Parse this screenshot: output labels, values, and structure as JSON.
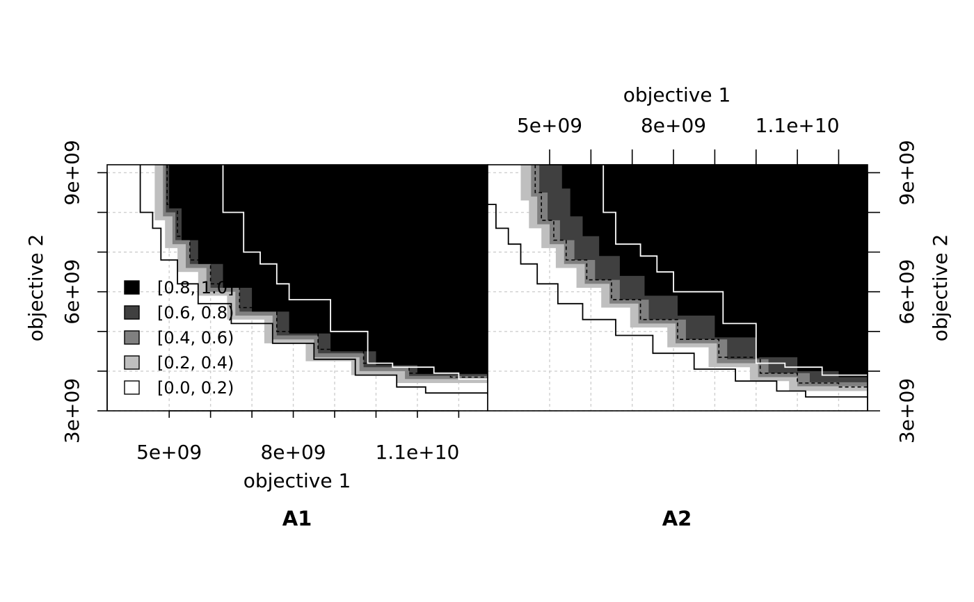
{
  "chart_data": {
    "type": "area",
    "figure": "empirical attainment function difference plot",
    "legend": {
      "placement": "bottom-left of A1 panel",
      "entries": [
        {
          "label": "[0.8, 1.0]",
          "color": "#000000"
        },
        {
          "label": "[0.6, 0.8)",
          "color": "#404040"
        },
        {
          "label": "[0.4, 0.6)",
          "color": "#808080"
        },
        {
          "label": "[0.2, 0.4)",
          "color": "#bfbfbf"
        },
        {
          "label": "[0.0, 0.2)",
          "color": "#ffffff"
        }
      ]
    },
    "axes": {
      "xlim": [
        3500000000,
        12700000000
      ],
      "ylim": [
        3000000000,
        9200000000
      ],
      "x_ticks": [
        5000000000,
        6000000000,
        7000000000,
        8000000000,
        9000000000,
        10000000000,
        11000000000,
        12000000000
      ],
      "y_ticks": [
        3000000000,
        4000000000,
        5000000000,
        6000000000,
        7000000000,
        8000000000,
        9000000000
      ],
      "x_tick_labels": [
        {
          "value": 5000000000,
          "label": "5e+09"
        },
        {
          "value": 8000000000,
          "label": "8e+09"
        },
        {
          "value": 11000000000,
          "label": "1.1e+10"
        }
      ],
      "y_tick_labels": [
        {
          "value": 3000000000,
          "label": "3e+09"
        },
        {
          "value": 6000000000,
          "label": "6e+09"
        },
        {
          "value": 9000000000,
          "label": "9e+09"
        }
      ],
      "xlabel": "objective 1",
      "ylabel": "objective 2",
      "grid": true
    },
    "panels": [
      {
        "title": "A1",
        "best_attainment": {
          "color": "#000000",
          "points": [
            [
              4300000000,
              9200000000
            ],
            [
              4300000000,
              8000000000
            ],
            [
              4600000000,
              7600000000
            ],
            [
              4800000000,
              6800000000
            ],
            [
              5200000000,
              6200000000
            ],
            [
              5700000000,
              5700000000
            ],
            [
              6500000000,
              5200000000
            ],
            [
              7500000000,
              4700000000
            ],
            [
              8500000000,
              4300000000
            ],
            [
              9500000000,
              3900000000
            ],
            [
              10500000000,
              3600000000
            ],
            [
              11200000000,
              3450000000
            ],
            [
              12700000000,
              3400000000
            ]
          ]
        },
        "worst_attainment": {
          "color": "#ffffff",
          "points": [
            [
              6300000000,
              9200000000
            ],
            [
              6300000000,
              8000000000
            ],
            [
              6800000000,
              7000000000
            ],
            [
              7200000000,
              6700000000
            ],
            [
              7600000000,
              6200000000
            ],
            [
              7900000000,
              5800000000
            ],
            [
              8900000000,
              5800000000
            ],
            [
              8900000000,
              5000000000
            ],
            [
              9800000000,
              5000000000
            ],
            [
              9800000000,
              4200000000
            ],
            [
              10400000000,
              4100000000
            ],
            [
              11400000000,
              3950000000
            ],
            [
              12000000000,
              3800000000
            ],
            [
              12700000000,
              3800000000
            ]
          ]
        },
        "median_attainment": {
          "style": "dashed",
          "points": [
            [
              4950000000,
              9200000000
            ],
            [
              4950000000,
              8200000000
            ],
            [
              5200000000,
              7400000000
            ],
            [
              5500000000,
              6800000000
            ],
            [
              6000000000,
              6200000000
            ],
            [
              6700000000,
              5600000000
            ],
            [
              7600000000,
              5000000000
            ],
            [
              8600000000,
              4550000000
            ],
            [
              9700000000,
              4200000000
            ],
            [
              10800000000,
              3950000000
            ],
            [
              11800000000,
              3850000000
            ],
            [
              12700000000,
              3800000000
            ]
          ]
        },
        "regions": [
          {
            "level": "[0.8, 1.0]",
            "color": "#000000",
            "outline": [
              [
                5000000000,
                9200000000
              ],
              [
                5000000000,
                8100000000
              ],
              [
                5300000000,
                7300000000
              ],
              [
                5700000000,
                6700000000
              ],
              [
                6300000000,
                6100000000
              ],
              [
                7000000000,
                5500000000
              ],
              [
                7900000000,
                4950000000
              ],
              [
                8900000000,
                4500000000
              ],
              [
                10000000000,
                4150000000
              ],
              [
                11000000000,
                3930000000
              ],
              [
                12700000000,
                3850000000
              ]
            ]
          },
          {
            "level": "[0.6, 0.8)",
            "color": "#404040",
            "outline": [
              [
                4920000000,
                9200000000
              ],
              [
                4920000000,
                8000000000
              ],
              [
                5150000000,
                7300000000
              ],
              [
                5500000000,
                6700000000
              ],
              [
                6000000000,
                6100000000
              ],
              [
                6700000000,
                5500000000
              ],
              [
                7600000000,
                4900000000
              ],
              [
                8600000000,
                4450000000
              ],
              [
                9700000000,
                4100000000
              ],
              [
                10800000000,
                3880000000
              ],
              [
                12700000000,
                3780000000
              ]
            ]
          },
          {
            "level": "[0.4, 0.6)",
            "color": "#808080",
            "outline": [
              [
                4850000000,
                9200000000
              ],
              [
                4850000000,
                7900000000
              ],
              [
                5080000000,
                7200000000
              ],
              [
                5400000000,
                6600000000
              ],
              [
                5900000000,
                6000000000
              ],
              [
                6600000000,
                5400000000
              ],
              [
                7500000000,
                4800000000
              ],
              [
                8500000000,
                4350000000
              ],
              [
                9600000000,
                4000000000
              ],
              [
                10700000000,
                3800000000
              ],
              [
                12700000000,
                3720000000
              ]
            ]
          },
          {
            "level": "[0.2, 0.4)",
            "color": "#bfbfbf",
            "outline": [
              [
                4650000000,
                9200000000
              ],
              [
                4650000000,
                7800000000
              ],
              [
                4900000000,
                7100000000
              ],
              [
                5200000000,
                6500000000
              ],
              [
                5700000000,
                5900000000
              ],
              [
                6400000000,
                5300000000
              ],
              [
                7300000000,
                4700000000
              ],
              [
                8300000000,
                4250000000
              ],
              [
                9400000000,
                3900000000
              ],
              [
                10500000000,
                3700000000
              ],
              [
                12700000000,
                3620000000
              ]
            ]
          }
        ]
      },
      {
        "title": "A2",
        "best_attainment": {
          "color": "#000000",
          "points": [
            [
              3500000000,
              8200000000
            ],
            [
              3700000000,
              7600000000
            ],
            [
              4000000000,
              7200000000
            ],
            [
              4300000000,
              6700000000
            ],
            [
              4700000000,
              6200000000
            ],
            [
              5200000000,
              5700000000
            ],
            [
              5800000000,
              5300000000
            ],
            [
              6600000000,
              4900000000
            ],
            [
              7500000000,
              4450000000
            ],
            [
              8500000000,
              4050000000
            ],
            [
              9500000000,
              3750000000
            ],
            [
              10500000000,
              3500000000
            ],
            [
              11200000000,
              3350000000
            ],
            [
              12700000000,
              3300000000
            ]
          ]
        },
        "worst_attainment": {
          "color": "#ffffff",
          "points": [
            [
              6300000000,
              9200000000
            ],
            [
              6300000000,
              8000000000
            ],
            [
              6600000000,
              7200000000
            ],
            [
              7200000000,
              6900000000
            ],
            [
              7600000000,
              6500000000
            ],
            [
              8000000000,
              6000000000
            ],
            [
              9200000000,
              6000000000
            ],
            [
              9200000000,
              5200000000
            ],
            [
              10000000000,
              5200000000
            ],
            [
              10000000000,
              4200000000
            ],
            [
              10700000000,
              4100000000
            ],
            [
              11600000000,
              3900000000
            ],
            [
              12700000000,
              3900000000
            ]
          ]
        },
        "median_attainment": {
          "style": "dashed",
          "points": [
            [
              4650000000,
              9200000000
            ],
            [
              4650000000,
              8500000000
            ],
            [
              4800000000,
              7800000000
            ],
            [
              5100000000,
              7300000000
            ],
            [
              5400000000,
              6800000000
            ],
            [
              5900000000,
              6300000000
            ],
            [
              6500000000,
              5800000000
            ],
            [
              7200000000,
              5300000000
            ],
            [
              8100000000,
              4800000000
            ],
            [
              9100000000,
              4350000000
            ],
            [
              10100000000,
              3950000000
            ],
            [
              11000000000,
              3700000000
            ],
            [
              12000000000,
              3600000000
            ],
            [
              12700000000,
              3550000000
            ]
          ]
        },
        "regions": [
          {
            "level": "[0.8, 1.0]",
            "color": "#000000",
            "outline": [
              [
                5300000000,
                9200000000
              ],
              [
                5300000000,
                8600000000
              ],
              [
                5500000000,
                7900000000
              ],
              [
                5800000000,
                7400000000
              ],
              [
                6200000000,
                6900000000
              ],
              [
                6700000000,
                6400000000
              ],
              [
                7300000000,
                5900000000
              ],
              [
                8100000000,
                5400000000
              ],
              [
                9000000000,
                4850000000
              ],
              [
                10000000000,
                4350000000
              ],
              [
                11000000000,
                4000000000
              ],
              [
                12000000000,
                3850000000
              ],
              [
                12700000000,
                3850000000
              ]
            ]
          },
          {
            "level": "[0.6, 0.8)",
            "color": "#404040",
            "outline": [
              [
                4750000000,
                9200000000
              ],
              [
                4750000000,
                8500000000
              ],
              [
                4950000000,
                7800000000
              ],
              [
                5250000000,
                7300000000
              ],
              [
                5600000000,
                6800000000
              ],
              [
                6100000000,
                6300000000
              ],
              [
                6700000000,
                5800000000
              ],
              [
                7400000000,
                5300000000
              ],
              [
                8300000000,
                4800000000
              ],
              [
                9300000000,
                4300000000
              ],
              [
                10300000000,
                3950000000
              ],
              [
                11300000000,
                3720000000
              ],
              [
                12700000000,
                3650000000
              ]
            ]
          },
          {
            "level": "[0.4, 0.6)",
            "color": "#808080",
            "outline": [
              [
                4550000000,
                9200000000
              ],
              [
                4550000000,
                8400000000
              ],
              [
                4700000000,
                7700000000
              ],
              [
                5000000000,
                7200000000
              ],
              [
                5350000000,
                6700000000
              ],
              [
                5850000000,
                6200000000
              ],
              [
                6450000000,
                5700000000
              ],
              [
                7150000000,
                5200000000
              ],
              [
                8050000000,
                4700000000
              ],
              [
                9050000000,
                4200000000
              ],
              [
                10050000000,
                3850000000
              ],
              [
                11000000000,
                3620000000
              ],
              [
                12700000000,
                3520000000
              ]
            ]
          },
          {
            "level": "[0.2, 0.4)",
            "color": "#bfbfbf",
            "outline": [
              [
                4300000000,
                9200000000
              ],
              [
                4300000000,
                8300000000
              ],
              [
                4500000000,
                7600000000
              ],
              [
                4800000000,
                7100000000
              ],
              [
                5150000000,
                6600000000
              ],
              [
                5650000000,
                6100000000
              ],
              [
                6250000000,
                5600000000
              ],
              [
                6950000000,
                5100000000
              ],
              [
                7850000000,
                4600000000
              ],
              [
                8850000000,
                4100000000
              ],
              [
                9850000000,
                3750000000
              ],
              [
                10800000000,
                3500000000
              ],
              [
                12700000000,
                3400000000
              ]
            ]
          }
        ]
      }
    ]
  }
}
